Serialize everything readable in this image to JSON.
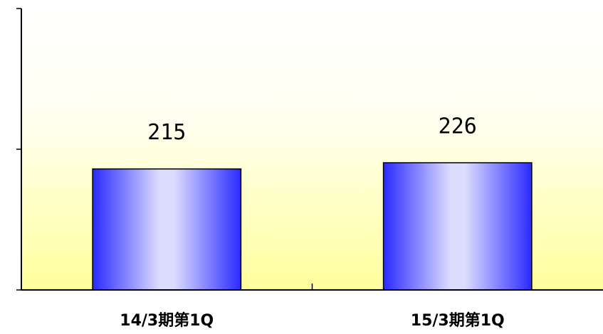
{
  "chart_data": {
    "type": "bar",
    "categories": [
      "14/3期第1Q",
      "15/3期第1Q"
    ],
    "values": [
      215,
      226
    ],
    "color": "#3333ff",
    "ylim": [
      0,
      500
    ],
    "yticks": [
      0,
      250,
      500
    ],
    "grid": false
  }
}
